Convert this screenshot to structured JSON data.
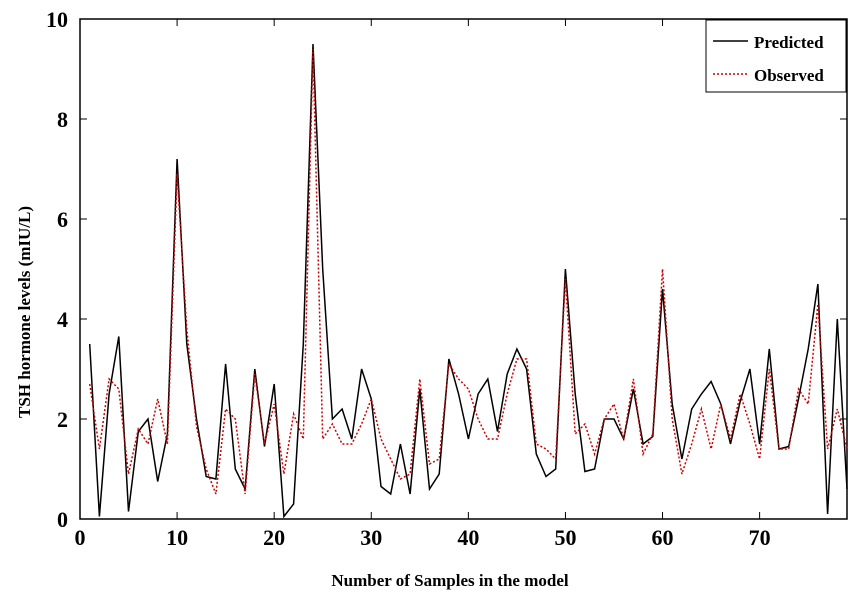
{
  "chart_data": {
    "type": "line",
    "title": "",
    "xlabel": "Number of Samples in the model",
    "ylabel": "TSH hormone levels (mIU/L)",
    "xlim": [
      0,
      79
    ],
    "ylim": [
      0,
      10
    ],
    "xticks": [
      0,
      10,
      20,
      30,
      40,
      50,
      60,
      70
    ],
    "yticks": [
      0,
      2,
      4,
      6,
      8,
      10
    ],
    "grid": false,
    "legend_position": "top-right",
    "x": [
      1,
      2,
      3,
      4,
      5,
      6,
      7,
      8,
      9,
      10,
      11,
      12,
      13,
      14,
      15,
      16,
      17,
      18,
      19,
      20,
      21,
      22,
      23,
      24,
      25,
      26,
      27,
      28,
      29,
      30,
      31,
      32,
      33,
      34,
      35,
      36,
      37,
      38,
      39,
      40,
      41,
      42,
      43,
      44,
      45,
      46,
      47,
      48,
      49,
      50,
      51,
      52,
      53,
      54,
      55,
      56,
      57,
      58,
      59,
      60,
      61,
      62,
      63,
      64,
      65,
      66,
      67,
      68,
      69,
      70,
      71,
      72,
      73,
      74,
      75,
      76,
      77,
      78,
      79
    ],
    "series": [
      {
        "name": "Predicted",
        "color": "#000000",
        "style": "solid",
        "values": [
          3.5,
          0.05,
          2.5,
          3.65,
          0.15,
          1.75,
          2.0,
          0.75,
          1.7,
          7.2,
          3.5,
          2.0,
          0.85,
          0.8,
          3.1,
          1.0,
          0.6,
          3.0,
          1.45,
          2.7,
          0.05,
          0.3,
          3.5,
          9.5,
          5.0,
          2.0,
          2.2,
          1.6,
          3.0,
          2.4,
          0.65,
          0.5,
          1.5,
          0.5,
          2.6,
          0.6,
          0.9,
          3.2,
          2.5,
          1.6,
          2.5,
          2.8,
          1.75,
          2.9,
          3.4,
          3.0,
          1.3,
          0.85,
          1.0,
          5.0,
          2.5,
          0.95,
          1.0,
          2.0,
          2.0,
          1.6,
          2.6,
          1.5,
          1.65,
          4.6,
          2.3,
          1.2,
          2.2,
          2.5,
          2.75,
          2.3,
          1.5,
          2.35,
          3.0,
          1.5,
          3.4,
          1.4,
          1.45,
          2.4,
          3.4,
          4.7,
          0.1,
          4.0,
          0.6
        ]
      },
      {
        "name": "Observed",
        "color": "#cc0000",
        "style": "dotted",
        "values": [
          2.7,
          1.4,
          2.8,
          2.6,
          0.9,
          1.8,
          1.5,
          2.4,
          1.5,
          6.9,
          3.8,
          1.85,
          1.0,
          0.5,
          2.2,
          2.0,
          0.5,
          2.9,
          1.5,
          2.3,
          0.9,
          2.1,
          1.6,
          9.4,
          1.6,
          1.9,
          1.5,
          1.5,
          1.9,
          2.4,
          1.6,
          1.2,
          0.8,
          0.9,
          2.8,
          1.1,
          1.2,
          3.1,
          2.8,
          2.6,
          2.0,
          1.6,
          1.6,
          2.5,
          3.2,
          3.2,
          1.5,
          1.4,
          1.2,
          4.8,
          1.7,
          1.9,
          1.3,
          2.0,
          2.3,
          1.6,
          2.8,
          1.3,
          1.7,
          5.0,
          2.0,
          0.9,
          1.5,
          2.2,
          1.4,
          2.3,
          1.6,
          2.5,
          1.9,
          1.2,
          3.0,
          1.4,
          1.4,
          2.6,
          2.3,
          4.3,
          1.4,
          2.2,
          1.4
        ]
      }
    ]
  }
}
